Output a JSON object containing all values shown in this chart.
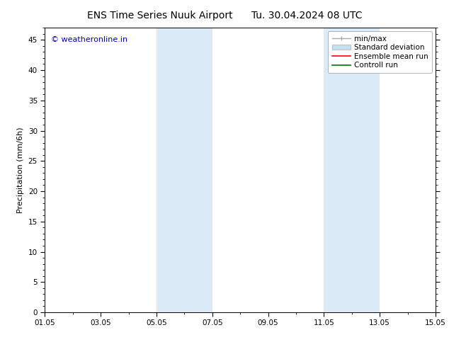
{
  "title": "ENS Time Series Nuuk Airport",
  "title2": "Tu. 30.04.2024 08 UTC",
  "ylabel": "Precipitation (mm/6h)",
  "watermark": "© weatheronline.in",
  "watermark_color": "#0000bb",
  "ylim": [
    0,
    47
  ],
  "yticks": [
    0,
    5,
    10,
    15,
    20,
    25,
    30,
    35,
    40,
    45
  ],
  "xtick_labels": [
    "01.05",
    "03.05",
    "05.05",
    "07.05",
    "09.05",
    "11.05",
    "13.05",
    "15.05"
  ],
  "bg_color": "#ffffff",
  "plot_bg_color": "#ffffff",
  "shaded_color": "#daeaf7",
  "shaded_regions": [
    {
      "day_start": 4,
      "day_end": 6
    },
    {
      "day_start": 10,
      "day_end": 12
    }
  ],
  "legend_minmax_color": "#aaaaaa",
  "legend_std_color": "#c8dff0",
  "legend_ens_color": "#ff0000",
  "legend_ctrl_color": "#007700",
  "font_size_title": 10,
  "font_size_axis": 8,
  "font_size_tick": 7.5,
  "font_size_legend": 7.5,
  "font_size_watermark": 8
}
